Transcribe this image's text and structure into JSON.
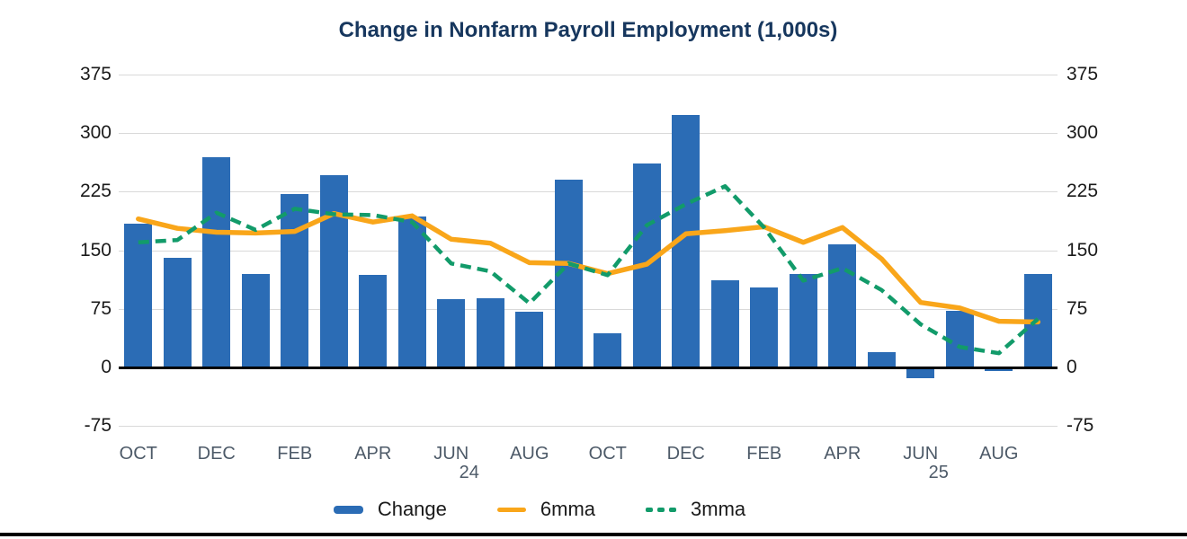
{
  "chart_data": {
    "type": "bar",
    "title": "Change in Nonfarm Payroll Employment (1,000s)",
    "n_points": 24,
    "bar_series": {
      "name": "Change",
      "color": "#2b6cb5",
      "values": [
        184,
        140,
        269,
        119,
        222,
        246,
        118,
        193,
        87,
        88,
        71,
        240,
        44,
        261,
        323,
        111,
        102,
        120,
        158,
        19,
        -13,
        72,
        -4,
        119
      ]
    },
    "line_series": [
      {
        "name": "6mma",
        "color": "#f9a61a",
        "style": "solid",
        "values": [
          190,
          178,
          173,
          172,
          174,
          197,
          186,
          194,
          164,
          159,
          134,
          133,
          120,
          132,
          171,
          175,
          180,
          160,
          179,
          139,
          83,
          76,
          59,
          58
        ]
      },
      {
        "name": "3mma",
        "color": "#129b6a",
        "style": "dashed",
        "values": [
          160,
          163,
          198,
          176,
          203,
          196,
          195,
          186,
          133,
          123,
          82,
          133,
          118,
          182,
          209,
          232,
          179,
          111,
          127,
          99,
          55,
          26,
          18,
          62
        ]
      }
    ],
    "x_ticks": [
      {
        "index": 0,
        "label": "OCT"
      },
      {
        "index": 2,
        "label": "DEC"
      },
      {
        "index": 4,
        "label": "FEB"
      },
      {
        "index": 6,
        "label": "APR"
      },
      {
        "index": 8,
        "label": "JUN",
        "year": "24"
      },
      {
        "index": 10,
        "label": "AUG"
      },
      {
        "index": 12,
        "label": "OCT"
      },
      {
        "index": 14,
        "label": "DEC"
      },
      {
        "index": 16,
        "label": "FEB"
      },
      {
        "index": 18,
        "label": "APR"
      },
      {
        "index": 20,
        "label": "JUN",
        "year": "25"
      },
      {
        "index": 22,
        "label": "AUG"
      }
    ],
    "y_axis": {
      "min": -75,
      "max": 375,
      "step": 75,
      "tick_labels": [
        "375",
        "300",
        "225",
        "150",
        "75",
        "0",
        "-75"
      ],
      "both_sides": true
    },
    "grid": true,
    "legend_position": "bottom",
    "colors": {
      "title_text": "#17375e",
      "gridline": "#d9d9d9",
      "zero_axis": "#000000",
      "y_tick_text": "#1a1a1a",
      "x_tick_text": "#4d5a68",
      "legend_text": "#1a1a1a",
      "bottom_border": "#000000"
    }
  }
}
